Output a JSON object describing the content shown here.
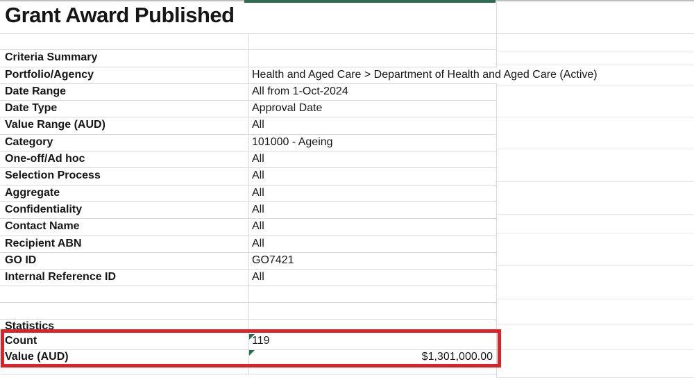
{
  "title": "Grant Award Published",
  "colors": {
    "highlight_red": "#da2228",
    "header_bar_green": "#2e6b51",
    "flag_green": "#217346",
    "gridline": "#d8d8d8",
    "text": "#161616"
  },
  "criteria": {
    "section_label": "Criteria Summary",
    "rows": [
      {
        "label": "Portfolio/Agency",
        "value": "Health and Aged Care > Department of Health and Aged Care (Active)"
      },
      {
        "label": "Date Range",
        "value": "All from 1-Oct-2024"
      },
      {
        "label": "Date Type",
        "value": "Approval Date"
      },
      {
        "label": "Value Range (AUD)",
        "value": "All"
      },
      {
        "label": "Category",
        "value": "101000 - Ageing"
      },
      {
        "label": "One-off/Ad hoc",
        "value": "All"
      },
      {
        "label": "Selection Process",
        "value": "All"
      },
      {
        "label": "Aggregate",
        "value": "All"
      },
      {
        "label": "Confidentiality",
        "value": "All"
      },
      {
        "label": "Contact Name",
        "value": "All"
      },
      {
        "label": "Recipient ABN",
        "value": "All"
      },
      {
        "label": "GO ID",
        "value": "GO7421"
      },
      {
        "label": "Internal Reference ID",
        "value": "All"
      }
    ]
  },
  "statistics": {
    "section_label": "Statistics",
    "rows": [
      {
        "label": "Count",
        "value": "119",
        "align": "left",
        "flag": true
      },
      {
        "label": "Value (AUD)",
        "value": "$1,301,000.00",
        "align": "right",
        "flag": true
      }
    ]
  }
}
